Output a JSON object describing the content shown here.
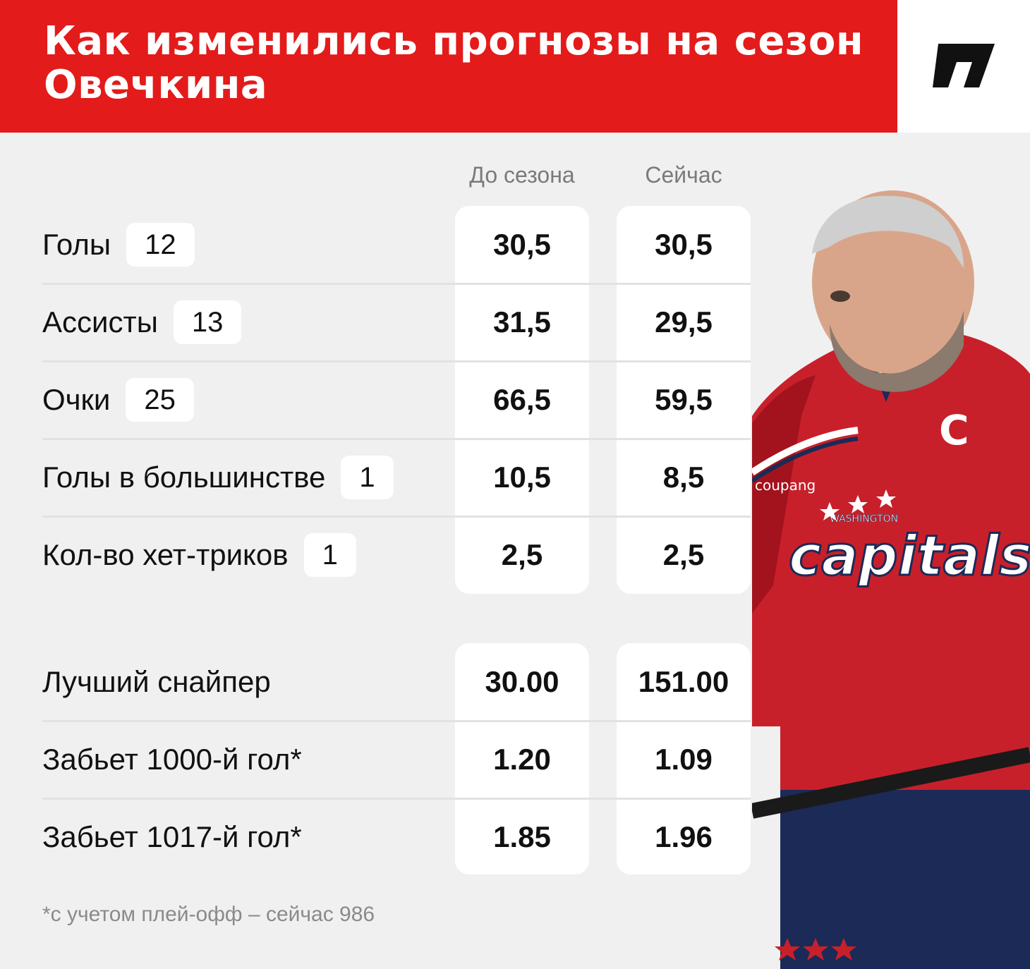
{
  "header": {
    "title": "Как изменились прогнозы на сезон Овечкина"
  },
  "logo": {
    "icon": "brand-logo-icon"
  },
  "columns": {
    "before": "До сезона",
    "now": "Сейчас"
  },
  "stats": [
    {
      "label": "Голы",
      "badge": "12",
      "before": "30,5",
      "now": "30,5"
    },
    {
      "label": "Ассисты",
      "badge": "13",
      "before": "31,5",
      "now": "29,5"
    },
    {
      "label": "Очки",
      "badge": "25",
      "before": "66,5",
      "now": "59,5"
    },
    {
      "label": "Голы в большинстве",
      "badge": "1",
      "before": "10,5",
      "now": "8,5"
    },
    {
      "label": "Кол-во хет-триков",
      "badge": "1",
      "before": "2,5",
      "now": "2,5"
    }
  ],
  "odds": [
    {
      "label": "Лучший снайпер",
      "before": "30.00",
      "now": "151.00"
    },
    {
      "label": "Забьет 1000-й гол*",
      "before": "1.20",
      "now": "1.09"
    },
    {
      "label": "Забьет 1017-й гол*",
      "before": "1.85",
      "now": "1.96"
    }
  ],
  "footnote": "*с учетом плей-офф – сейчас 986",
  "player_jersey": {
    "sponsor": "coupang",
    "team_small": "WASHINGTON",
    "team_big": "capitals",
    "captain": "C"
  },
  "colors": {
    "accent": "#e31b1b",
    "background": "#f0f0f0",
    "card": "#ffffff"
  }
}
